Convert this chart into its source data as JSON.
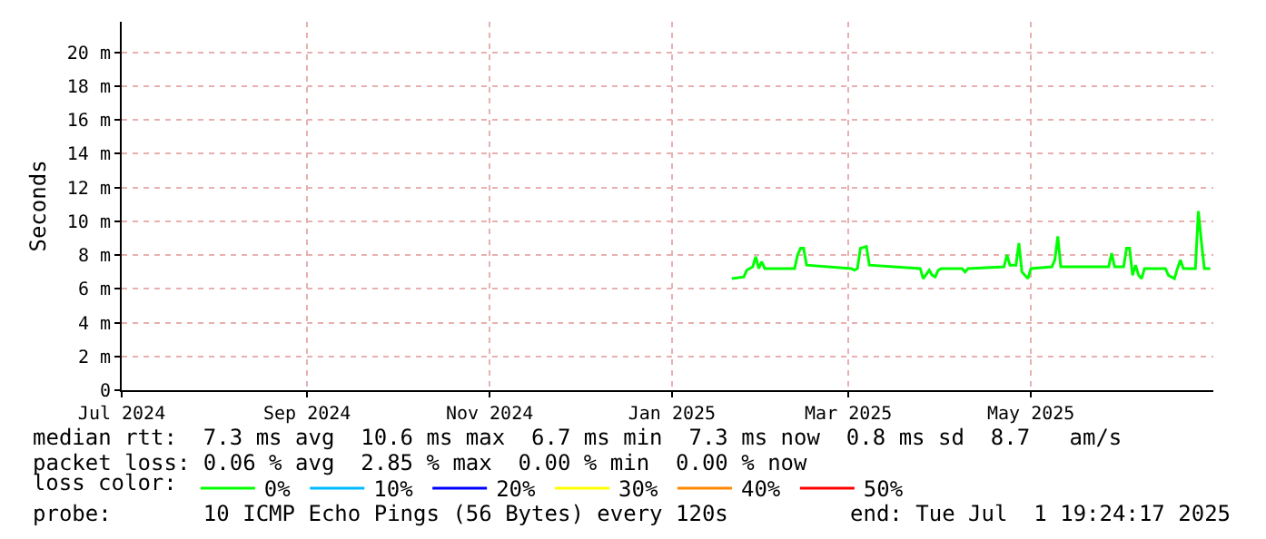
{
  "chart_data": {
    "type": "line",
    "ylabel": "Seconds",
    "xlim": [
      "2024-07-01",
      "2025-07-01"
    ],
    "xticks": [
      {
        "value": "2024-07-01",
        "label": "Jul 2024"
      },
      {
        "value": "2024-09-01",
        "label": "Sep 2024"
      },
      {
        "value": "2024-11-01",
        "label": "Nov 2024"
      },
      {
        "value": "2025-01-01",
        "label": "Jan 2025"
      },
      {
        "value": "2025-03-01",
        "label": "Mar 2025"
      },
      {
        "value": "2025-05-01",
        "label": "May 2025"
      }
    ],
    "ylim": [
      0,
      21.8
    ],
    "yticks": [
      0,
      {
        "value": 2,
        "label": "2 m"
      },
      {
        "value": 4,
        "label": "4 m"
      },
      {
        "value": 6,
        "label": "6 m"
      },
      {
        "value": 8,
        "label": "8 m"
      },
      {
        "value": 10,
        "label": "10 m"
      },
      {
        "value": 12,
        "label": "12 m"
      },
      {
        "value": 14,
        "label": "14 m"
      },
      {
        "value": 16,
        "label": "16 m"
      },
      {
        "value": 18,
        "label": "18 m"
      },
      {
        "value": 20,
        "label": "20 m"
      }
    ],
    "grid": true,
    "legend": "bottom",
    "legend_title": "loss color:",
    "series": [
      {
        "name": "0%",
        "color": "#00ff00",
        "x": [
          "2025-01-21",
          "2025-01-25",
          "2025-01-26",
          "2025-01-28",
          "2025-01-29",
          "2025-01-30",
          "2025-01-31",
          "2025-02-01",
          "2025-02-11",
          "2025-02-12",
          "2025-02-13",
          "2025-02-14",
          "2025-02-15",
          "2025-03-02",
          "2025-03-03",
          "2025-03-04",
          "2025-03-05",
          "2025-03-07",
          "2025-03-08",
          "2025-03-25",
          "2025-03-26",
          "2025-03-28",
          "2025-03-29",
          "2025-03-30",
          "2025-03-31",
          "2025-04-01",
          "2025-04-08",
          "2025-04-09",
          "2025-04-10",
          "2025-04-22",
          "2025-04-23",
          "2025-04-24",
          "2025-04-26",
          "2025-04-27",
          "2025-04-28",
          "2025-04-30",
          "2025-05-01",
          "2025-05-08",
          "2025-05-09",
          "2025-05-10",
          "2025-05-11",
          "2025-05-27",
          "2025-05-28",
          "2025-05-29",
          "2025-06-01",
          "2025-06-02",
          "2025-06-03",
          "2025-06-04",
          "2025-06-05",
          "2025-06-06",
          "2025-06-07",
          "2025-06-08",
          "2025-06-15",
          "2025-06-16",
          "2025-06-18",
          "2025-06-19",
          "2025-06-20",
          "2025-06-21",
          "2025-06-25",
          "2025-06-26",
          "2025-06-27",
          "2025-06-28",
          "2025-06-30"
        ],
        "values": [
          6.6,
          6.7,
          7.1,
          7.3,
          7.9,
          7.2,
          7.6,
          7.2,
          7.2,
          8.0,
          8.4,
          8.4,
          7.4,
          7.2,
          7.1,
          7.2,
          8.4,
          8.5,
          7.4,
          7.2,
          6.6,
          7.1,
          6.8,
          6.7,
          7.1,
          7.2,
          7.2,
          7.0,
          7.2,
          7.3,
          8.0,
          7.4,
          7.4,
          8.7,
          7.0,
          6.6,
          7.2,
          7.3,
          7.7,
          9.1,
          7.3,
          7.3,
          8.1,
          7.3,
          7.3,
          8.4,
          8.4,
          6.8,
          7.4,
          6.8,
          6.6,
          7.2,
          7.2,
          6.8,
          6.6,
          7.2,
          7.7,
          7.2,
          7.2,
          10.6,
          8.8,
          7.2,
          7.2
        ]
      },
      {
        "name": "10%",
        "color": "#00bbff"
      },
      {
        "name": "20%",
        "color": "#0000ff"
      },
      {
        "name": "30%",
        "color": "#ffff00"
      },
      {
        "name": "40%",
        "color": "#ff8800"
      },
      {
        "name": "50%",
        "color": "#ff0000"
      }
    ],
    "annotations": [
      "median rtt:  7.3 ms avg  10.6 ms max  6.7 ms min  7.3 ms now  0.8 ms sd  8.7   am/s",
      "packet loss: 0.06 % avg  2.85 % max  0.00 % min  0.00 % now",
      "probe:       10 ICMP Echo Pings (56 Bytes) every 120s",
      "end: Tue Jul  1 19:24:17 2025"
    ]
  }
}
